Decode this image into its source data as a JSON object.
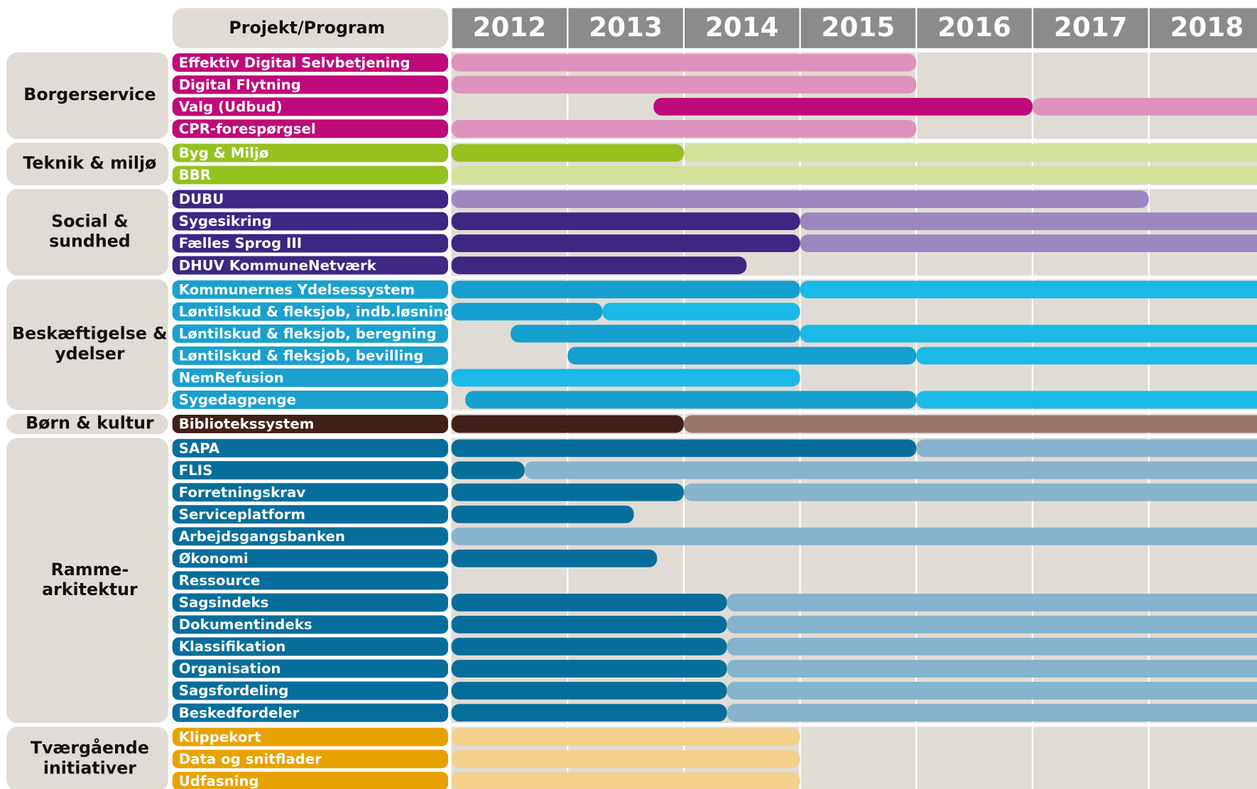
{
  "chart_data": {
    "type": "gantt",
    "header": "Projekt/Program",
    "years": [
      2012,
      2013,
      2014,
      2015,
      2016,
      2017,
      2018
    ],
    "xlim": [
      2012,
      2019
    ],
    "groups": [
      {
        "name": [
          "Borgerservice"
        ],
        "color": "#c0097a",
        "tasks": [
          {
            "name": "Effektiv Digital Selvbetjening",
            "phases": [
              {
                "start": 2012,
                "end": 2016,
                "color": "#dd92bb"
              }
            ]
          },
          {
            "name": "Digital Flytning",
            "phases": [
              {
                "start": 2012,
                "end": 2016,
                "color": "#dd92bb"
              }
            ]
          },
          {
            "name": "Valg (Udbud)",
            "phases": [
              {
                "start": 2013.74,
                "end": 2017,
                "color": "#c0097a"
              },
              {
                "start": 2017,
                "end": 2019,
                "color": "#dd92bb"
              }
            ]
          },
          {
            "name": "CPR-forespørgsel",
            "phases": [
              {
                "start": 2012,
                "end": 2016,
                "color": "#dd92bb"
              }
            ]
          }
        ]
      },
      {
        "name": [
          "Teknik & miljø"
        ],
        "color": "#96c11f",
        "tasks": [
          {
            "name": "Byg & Miljø",
            "phases": [
              {
                "start": 2012,
                "end": 2014,
                "color": "#96c11f"
              },
              {
                "start": 2014,
                "end": 2019,
                "color": "#d3e29b"
              }
            ]
          },
          {
            "name": "BBR",
            "phases": [
              {
                "start": 2012,
                "end": 2019,
                "color": "#d3e29b"
              }
            ]
          }
        ]
      },
      {
        "name": [
          "Social &",
          "sundhed"
        ],
        "color": "#3e2683",
        "tasks": [
          {
            "name": "DUBU",
            "phases": [
              {
                "start": 2012,
                "end": 2018,
                "color": "#9c87c0"
              }
            ]
          },
          {
            "name": "Sygesikring",
            "phases": [
              {
                "start": 2012,
                "end": 2015,
                "color": "#3e2683"
              },
              {
                "start": 2015,
                "end": 2019,
                "color": "#9c87c0"
              }
            ]
          },
          {
            "name": "Fælles Sprog III",
            "phases": [
              {
                "start": 2012,
                "end": 2015,
                "color": "#3e2683"
              },
              {
                "start": 2015,
                "end": 2019,
                "color": "#9c87c0"
              }
            ]
          },
          {
            "name": "DHUV KommuneNetværk",
            "phases": [
              {
                "start": 2012,
                "end": 2014.54,
                "color": "#3e2683"
              }
            ]
          }
        ]
      },
      {
        "name": [
          "Beskæftigelse &",
          "ydelser"
        ],
        "color": "#1aa0cf",
        "tasks": [
          {
            "name": "Kommunernes Ydelsessystem",
            "phases": [
              {
                "start": 2012,
                "end": 2015,
                "color": "#159fcf"
              },
              {
                "start": 2015,
                "end": 2019,
                "color": "#1bb9e8"
              }
            ]
          },
          {
            "name": "Løntilskud & fleksjob, indb.løsning",
            "phases": [
              {
                "start": 2012,
                "end": 2013.3,
                "color": "#159fcf"
              },
              {
                "start": 2013.3,
                "end": 2015,
                "color": "#1bb9e8"
              }
            ]
          },
          {
            "name": "Løntilskud & fleksjob, beregning",
            "phases": [
              {
                "start": 2012.51,
                "end": 2015,
                "color": "#159fcf"
              },
              {
                "start": 2015,
                "end": 2019,
                "color": "#1bb9e8"
              }
            ]
          },
          {
            "name": "Løntilskud & fleksjob, bevilling",
            "phases": [
              {
                "start": 2013,
                "end": 2016,
                "color": "#159fcf"
              },
              {
                "start": 2016,
                "end": 2019,
                "color": "#1bb9e8"
              }
            ]
          },
          {
            "name": "NemRefusion",
            "phases": [
              {
                "start": 2012,
                "end": 2015,
                "color": "#1bb9e8"
              }
            ]
          },
          {
            "name": "Sygedagpenge",
            "phases": [
              {
                "start": 2012.12,
                "end": 2016,
                "color": "#159fcf"
              },
              {
                "start": 2016,
                "end": 2019,
                "color": "#1bb9e8"
              }
            ]
          }
        ]
      },
      {
        "name": [
          "Børn & kultur"
        ],
        "color": "#42201a",
        "tasks": [
          {
            "name": "Bibliotekssystem",
            "phases": [
              {
                "start": 2012,
                "end": 2014,
                "color": "#42201a"
              },
              {
                "start": 2014,
                "end": 2019,
                "color": "#9a7569"
              }
            ]
          }
        ]
      },
      {
        "name": [
          "Ramme-",
          "arkitektur"
        ],
        "color": "#076e9b",
        "tasks": [
          {
            "name": "SAPA",
            "phases": [
              {
                "start": 2012,
                "end": 2016,
                "color": "#076e9b"
              },
              {
                "start": 2016,
                "end": 2019,
                "color": "#86b3cd"
              }
            ]
          },
          {
            "name": "FLIS",
            "phases": [
              {
                "start": 2012,
                "end": 2012.63,
                "color": "#076e9b"
              },
              {
                "start": 2012.63,
                "end": 2019,
                "color": "#86b3cd"
              }
            ]
          },
          {
            "name": "Forretningskrav",
            "phases": [
              {
                "start": 2012,
                "end": 2014,
                "color": "#076e9b"
              },
              {
                "start": 2014,
                "end": 2019,
                "color": "#86b3cd"
              }
            ]
          },
          {
            "name": "Serviceplatform",
            "phases": [
              {
                "start": 2012,
                "end": 2013.57,
                "color": "#076e9b"
              }
            ]
          },
          {
            "name": "Arbejdsgangsbanken",
            "phases": [
              {
                "start": 2012,
                "end": 2019,
                "color": "#86b3cd"
              }
            ]
          },
          {
            "name": "Økonomi",
            "phases": [
              {
                "start": 2012,
                "end": 2013.77,
                "color": "#076e9b"
              }
            ]
          },
          {
            "name": "Ressource",
            "phases": []
          },
          {
            "name": "Sagsindeks",
            "phases": [
              {
                "start": 2012,
                "end": 2014.37,
                "color": "#076e9b"
              },
              {
                "start": 2014.37,
                "end": 2019,
                "color": "#86b3cd"
              }
            ]
          },
          {
            "name": "Dokumentindeks",
            "phases": [
              {
                "start": 2012,
                "end": 2014.37,
                "color": "#076e9b"
              },
              {
                "start": 2014.37,
                "end": 2019,
                "color": "#86b3cd"
              }
            ]
          },
          {
            "name": "Klassifikation",
            "phases": [
              {
                "start": 2012,
                "end": 2014.37,
                "color": "#076e9b"
              },
              {
                "start": 2014.37,
                "end": 2019,
                "color": "#86b3cd"
              }
            ]
          },
          {
            "name": "Organisation",
            "phases": [
              {
                "start": 2012,
                "end": 2014.37,
                "color": "#076e9b"
              },
              {
                "start": 2014.37,
                "end": 2019,
                "color": "#86b3cd"
              }
            ]
          },
          {
            "name": "Sagsfordeling",
            "phases": [
              {
                "start": 2012,
                "end": 2014.37,
                "color": "#076e9b"
              },
              {
                "start": 2014.37,
                "end": 2019,
                "color": "#86b3cd"
              }
            ]
          },
          {
            "name": "Beskedfordeler",
            "phases": [
              {
                "start": 2012,
                "end": 2014.37,
                "color": "#076e9b"
              },
              {
                "start": 2014.37,
                "end": 2019,
                "color": "#86b3cd"
              }
            ]
          }
        ]
      },
      {
        "name": [
          "Tværgående",
          "initiativer"
        ],
        "color": "#e8a200",
        "tasks": [
          {
            "name": "Klippekort",
            "phases": [
              {
                "start": 2012,
                "end": 2015,
                "color": "#f5cf8c"
              }
            ]
          },
          {
            "name": "Data og snitflader",
            "phases": [
              {
                "start": 2012,
                "end": 2015,
                "color": "#f5cf8c"
              }
            ]
          },
          {
            "name": "Udfasning",
            "phases": [
              {
                "start": 2012,
                "end": 2015,
                "color": "#f5cf8c"
              }
            ]
          }
        ]
      }
    ]
  }
}
